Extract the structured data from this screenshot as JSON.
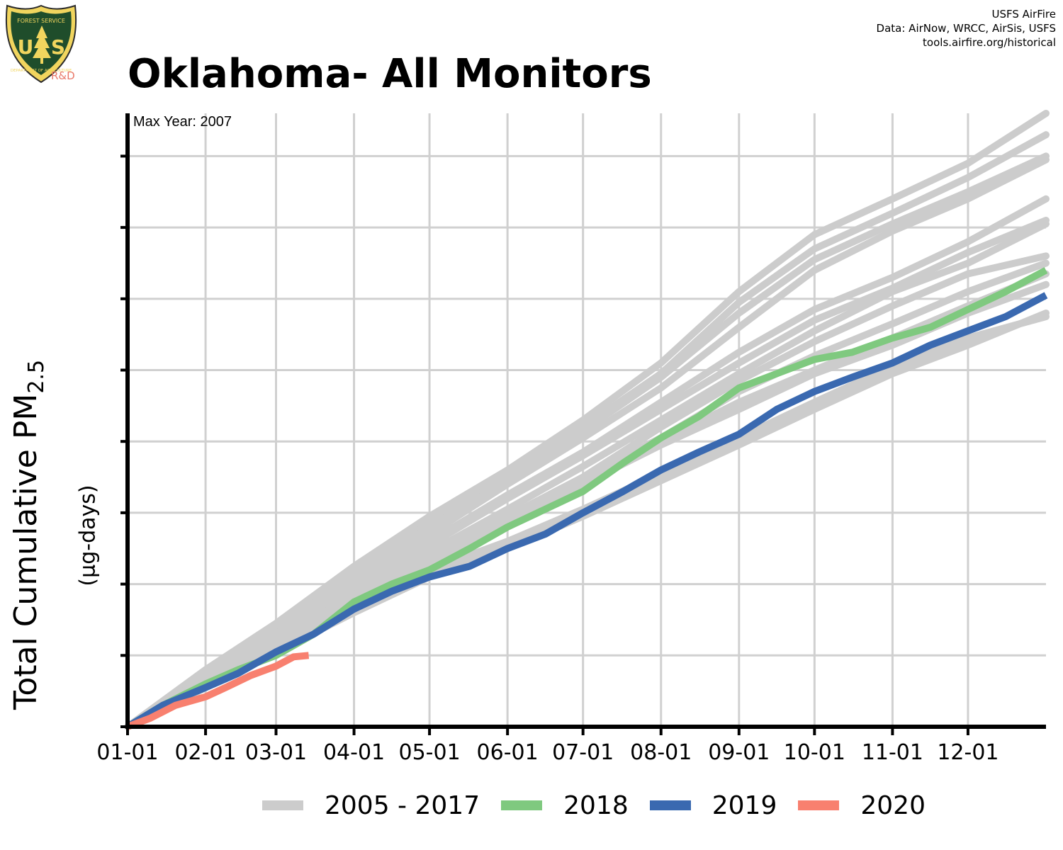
{
  "logo": {
    "text_top": "FOREST SERVICE",
    "text_main": "US",
    "text_bottom": "DEPARTMENT OF AGRICULTURE",
    "sublabel": "R&D"
  },
  "credits": [
    "USFS AirFire",
    "Data: AirNow, WRCC, AirSis, USFS",
    "tools.airfire.org/historical"
  ],
  "colors": {
    "history": "#cccccc",
    "y2018": "#7fc97f",
    "y2019": "#3a69b0",
    "y2020": "#f8806f",
    "grid": "#d0d0d0",
    "axis": "#000000"
  },
  "chart_data": {
    "type": "line",
    "title": "Oklahoma- All Monitors",
    "annotation": "Max Year: 2007",
    "ylabel": "Total Cumulative PM",
    "ylabel_sub": "2.5",
    "ylabel_unit": "(µg-days)",
    "xlabel": "",
    "x_ticks": [
      "01-01",
      "02-01",
      "03-01",
      "04-01",
      "05-01",
      "06-01",
      "07-01",
      "08-01",
      "09-01",
      "10-01",
      "11-01",
      "12-01"
    ],
    "x_tick_days": [
      1,
      32,
      60,
      91,
      121,
      152,
      182,
      213,
      244,
      274,
      305,
      335
    ],
    "xlim": [
      1,
      366
    ],
    "ylim": [
      0,
      8.6
    ],
    "y_ticks": [
      0,
      1,
      2,
      3,
      4,
      5,
      6,
      7,
      8
    ],
    "y_tick_labels_shown": false,
    "grid": true,
    "legend_position": "bottom",
    "legend": [
      "2005 - 2017",
      "2018",
      "2019",
      "2020"
    ],
    "history_series": [
      {
        "values": [
          [
            1,
            0
          ],
          [
            32,
            0.8
          ],
          [
            60,
            1.45
          ],
          [
            91,
            2.25
          ],
          [
            121,
            2.95
          ],
          [
            152,
            3.6
          ],
          [
            182,
            4.3
          ],
          [
            213,
            5.1
          ],
          [
            244,
            6.1
          ],
          [
            274,
            6.9
          ],
          [
            305,
            7.4
          ],
          [
            335,
            7.9
          ],
          [
            366,
            8.6
          ]
        ]
      },
      {
        "values": [
          [
            1,
            0
          ],
          [
            32,
            0.75
          ],
          [
            60,
            1.4
          ],
          [
            91,
            2.2
          ],
          [
            121,
            2.85
          ],
          [
            152,
            3.5
          ],
          [
            182,
            4.2
          ],
          [
            213,
            4.95
          ],
          [
            244,
            5.95
          ],
          [
            274,
            6.7
          ],
          [
            305,
            7.2
          ],
          [
            335,
            7.7
          ],
          [
            366,
            8.3
          ]
        ]
      },
      {
        "values": [
          [
            1,
            0
          ],
          [
            32,
            0.75
          ],
          [
            60,
            1.35
          ],
          [
            91,
            2.15
          ],
          [
            121,
            2.8
          ],
          [
            152,
            3.45
          ],
          [
            182,
            4.15
          ],
          [
            213,
            4.9
          ],
          [
            244,
            5.8
          ],
          [
            274,
            6.55
          ],
          [
            305,
            7.05
          ],
          [
            335,
            7.5
          ],
          [
            366,
            8.0
          ]
        ]
      },
      {
        "values": [
          [
            1,
            0
          ],
          [
            32,
            0.7
          ],
          [
            60,
            1.3
          ],
          [
            91,
            2.05
          ],
          [
            121,
            2.7
          ],
          [
            152,
            3.4
          ],
          [
            182,
            4.05
          ],
          [
            213,
            4.75
          ],
          [
            244,
            5.6
          ],
          [
            274,
            6.4
          ],
          [
            305,
            6.95
          ],
          [
            335,
            7.4
          ],
          [
            366,
            7.95
          ]
        ]
      },
      {
        "values": [
          [
            1,
            0
          ],
          [
            32,
            0.7
          ],
          [
            60,
            1.3
          ],
          [
            91,
            2.0
          ],
          [
            121,
            2.6
          ],
          [
            152,
            3.25
          ],
          [
            182,
            3.85
          ],
          [
            213,
            4.55
          ],
          [
            244,
            5.25
          ],
          [
            274,
            5.85
          ],
          [
            305,
            6.3
          ],
          [
            335,
            6.8
          ],
          [
            366,
            7.4
          ]
        ]
      },
      {
        "values": [
          [
            1,
            0
          ],
          [
            32,
            0.7
          ],
          [
            60,
            1.25
          ],
          [
            91,
            1.95
          ],
          [
            121,
            2.55
          ],
          [
            152,
            3.2
          ],
          [
            182,
            3.8
          ],
          [
            213,
            4.45
          ],
          [
            244,
            5.1
          ],
          [
            274,
            5.7
          ],
          [
            305,
            6.15
          ],
          [
            335,
            6.65
          ],
          [
            366,
            7.1
          ]
        ]
      },
      {
        "values": [
          [
            1,
            0
          ],
          [
            32,
            0.65
          ],
          [
            60,
            1.2
          ],
          [
            91,
            1.85
          ],
          [
            121,
            2.45
          ],
          [
            152,
            3.05
          ],
          [
            182,
            3.65
          ],
          [
            213,
            4.3
          ],
          [
            244,
            4.95
          ],
          [
            274,
            5.55
          ],
          [
            305,
            6.1
          ],
          [
            335,
            6.5
          ],
          [
            366,
            7.05
          ]
        ]
      },
      {
        "values": [
          [
            1,
            0
          ],
          [
            32,
            0.65
          ],
          [
            60,
            1.2
          ],
          [
            91,
            1.85
          ],
          [
            121,
            2.4
          ],
          [
            152,
            2.95
          ],
          [
            182,
            3.5
          ],
          [
            213,
            4.2
          ],
          [
            244,
            4.85
          ],
          [
            274,
            5.4
          ],
          [
            305,
            5.9
          ],
          [
            335,
            6.35
          ],
          [
            366,
            6.6
          ]
        ]
      },
      {
        "values": [
          [
            1,
            0
          ],
          [
            32,
            0.6
          ],
          [
            60,
            1.15
          ],
          [
            91,
            1.8
          ],
          [
            121,
            2.35
          ],
          [
            152,
            2.9
          ],
          [
            182,
            3.4
          ],
          [
            213,
            3.95
          ],
          [
            244,
            4.45
          ],
          [
            274,
            4.95
          ],
          [
            305,
            5.35
          ],
          [
            335,
            5.8
          ],
          [
            366,
            6.2
          ]
        ]
      },
      {
        "values": [
          [
            1,
            0
          ],
          [
            32,
            0.55
          ],
          [
            60,
            1.1
          ],
          [
            91,
            1.7
          ],
          [
            121,
            2.2
          ],
          [
            152,
            2.6
          ],
          [
            182,
            3.05
          ],
          [
            213,
            3.55
          ],
          [
            244,
            4.05
          ],
          [
            274,
            4.55
          ],
          [
            305,
            5.05
          ],
          [
            335,
            5.45
          ],
          [
            366,
            5.75
          ]
        ]
      },
      {
        "values": [
          [
            1,
            0
          ],
          [
            32,
            0.55
          ],
          [
            60,
            1.05
          ],
          [
            91,
            1.6
          ],
          [
            121,
            2.1
          ],
          [
            152,
            2.5
          ],
          [
            182,
            2.95
          ],
          [
            213,
            3.45
          ],
          [
            244,
            3.95
          ],
          [
            274,
            4.45
          ],
          [
            305,
            4.95
          ],
          [
            335,
            5.35
          ],
          [
            366,
            5.8
          ]
        ]
      },
      {
        "values": [
          [
            1,
            0
          ],
          [
            32,
            0.6
          ],
          [
            60,
            1.1
          ],
          [
            91,
            1.75
          ],
          [
            121,
            2.3
          ],
          [
            152,
            2.85
          ],
          [
            182,
            3.45
          ],
          [
            213,
            4.0
          ],
          [
            244,
            4.55
          ],
          [
            274,
            5.0
          ],
          [
            305,
            5.45
          ],
          [
            335,
            5.9
          ],
          [
            366,
            6.35
          ]
        ]
      },
      {
        "values": [
          [
            1,
            0
          ],
          [
            32,
            0.65
          ],
          [
            60,
            1.15
          ],
          [
            91,
            1.8
          ],
          [
            121,
            2.35
          ],
          [
            152,
            2.9
          ],
          [
            182,
            3.5
          ],
          [
            213,
            4.05
          ],
          [
            244,
            4.7
          ],
          [
            274,
            5.2
          ],
          [
            305,
            5.65
          ],
          [
            335,
            6.1
          ],
          [
            366,
            6.5
          ]
        ]
      }
    ],
    "series": [
      {
        "name": "2018",
        "color": "#7fc97f",
        "values": [
          [
            1,
            0
          ],
          [
            15,
            0.3
          ],
          [
            32,
            0.6
          ],
          [
            45,
            0.8
          ],
          [
            60,
            1.0
          ],
          [
            75,
            1.3
          ],
          [
            91,
            1.75
          ],
          [
            106,
            2.0
          ],
          [
            121,
            2.2
          ],
          [
            137,
            2.5
          ],
          [
            152,
            2.8
          ],
          [
            167,
            3.05
          ],
          [
            182,
            3.3
          ],
          [
            198,
            3.7
          ],
          [
            213,
            4.05
          ],
          [
            228,
            4.35
          ],
          [
            244,
            4.75
          ],
          [
            259,
            4.95
          ],
          [
            274,
            5.15
          ],
          [
            289,
            5.25
          ],
          [
            305,
            5.45
          ],
          [
            320,
            5.6
          ],
          [
            335,
            5.85
          ],
          [
            350,
            6.1
          ],
          [
            366,
            6.4
          ]
        ]
      },
      {
        "name": "2019",
        "color": "#3a69b0",
        "values": [
          [
            1,
            0
          ],
          [
            15,
            0.3
          ],
          [
            32,
            0.55
          ],
          [
            45,
            0.75
          ],
          [
            60,
            1.05
          ],
          [
            75,
            1.3
          ],
          [
            91,
            1.65
          ],
          [
            106,
            1.9
          ],
          [
            121,
            2.1
          ],
          [
            137,
            2.25
          ],
          [
            152,
            2.5
          ],
          [
            167,
            2.7
          ],
          [
            182,
            3.0
          ],
          [
            198,
            3.3
          ],
          [
            213,
            3.6
          ],
          [
            228,
            3.85
          ],
          [
            244,
            4.1
          ],
          [
            259,
            4.45
          ],
          [
            274,
            4.7
          ],
          [
            289,
            4.9
          ],
          [
            305,
            5.1
          ],
          [
            320,
            5.35
          ],
          [
            335,
            5.55
          ],
          [
            350,
            5.75
          ],
          [
            366,
            6.05
          ]
        ]
      },
      {
        "name": "2020",
        "color": "#f8806f",
        "values": [
          [
            1,
            0
          ],
          [
            10,
            0.12
          ],
          [
            20,
            0.3
          ],
          [
            32,
            0.42
          ],
          [
            40,
            0.55
          ],
          [
            50,
            0.72
          ],
          [
            60,
            0.85
          ],
          [
            67,
            0.98
          ],
          [
            73,
            1.0
          ]
        ]
      }
    ]
  }
}
